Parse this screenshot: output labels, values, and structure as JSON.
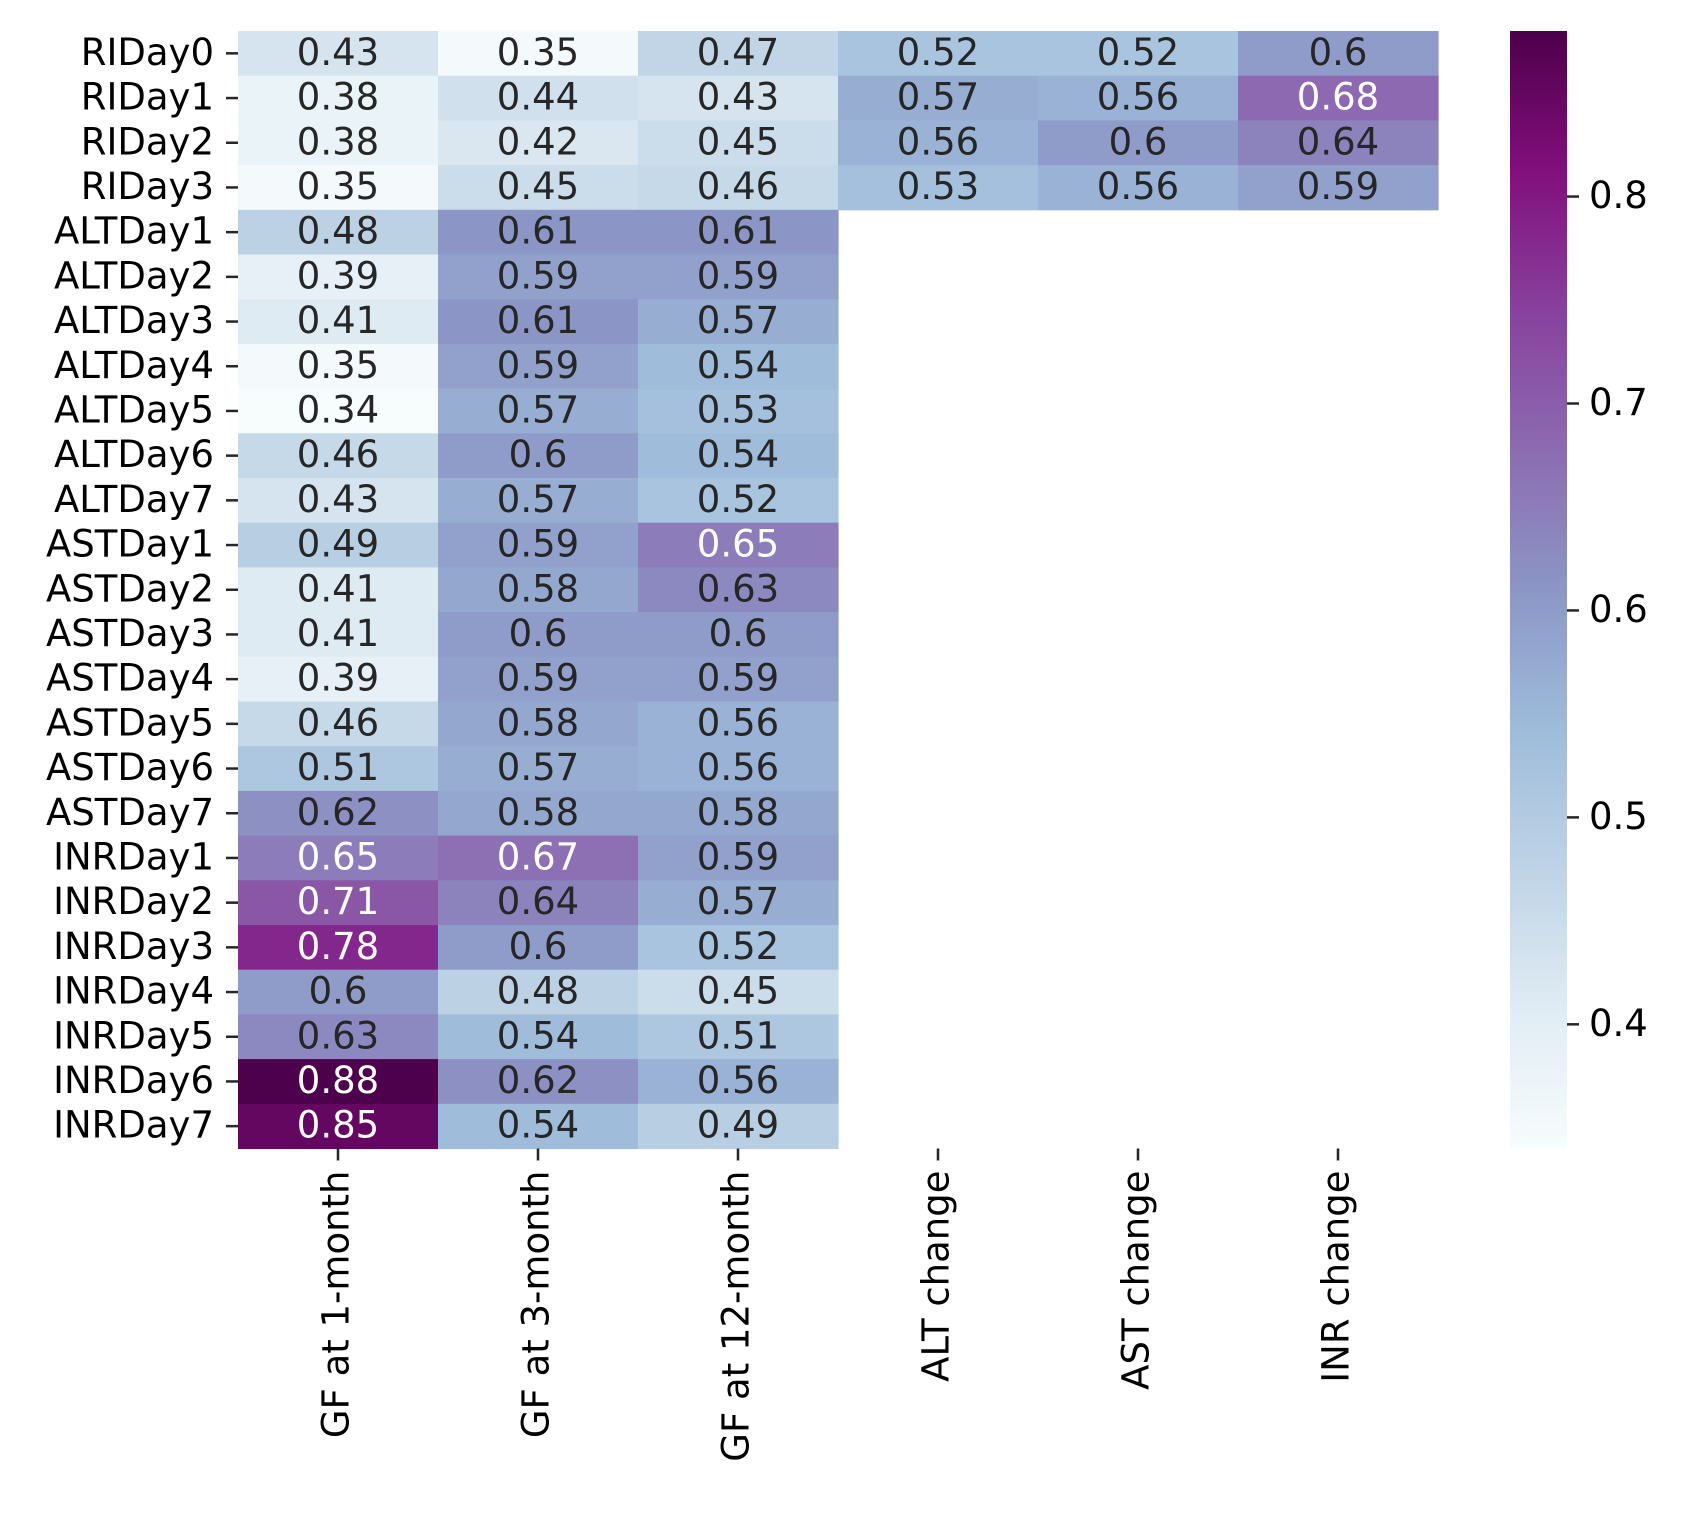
{
  "chart_data": {
    "type": "heatmap",
    "title": "",
    "xlabel": "",
    "ylabel": "",
    "x_categories": [
      "GF at 1-month",
      "GF at 3-month",
      "GF at 12-month",
      "ALT change",
      "AST change",
      "INR change"
    ],
    "y_categories": [
      "RIDay0",
      "RIDay1",
      "RIDay2",
      "RIDay3",
      "ALTDay1",
      "ALTDay2",
      "ALTDay3",
      "ALTDay4",
      "ALTDay5",
      "ALTDay6",
      "ALTDay7",
      "ASTDay1",
      "ASTDay2",
      "ASTDay3",
      "ASTDay4",
      "ASTDay5",
      "ASTDay6",
      "ASTDay7",
      "INRDay1",
      "INRDay2",
      "INRDay3",
      "INRDay4",
      "INRDay5",
      "INRDay6",
      "INRDay7"
    ],
    "values": [
      [
        0.43,
        0.35,
        0.47,
        0.52,
        0.52,
        0.6
      ],
      [
        0.38,
        0.44,
        0.43,
        0.57,
        0.56,
        0.68
      ],
      [
        0.38,
        0.42,
        0.45,
        0.56,
        0.6,
        0.64
      ],
      [
        0.35,
        0.45,
        0.46,
        0.53,
        0.56,
        0.59
      ],
      [
        0.48,
        0.61,
        0.61,
        null,
        null,
        null
      ],
      [
        0.39,
        0.59,
        0.59,
        null,
        null,
        null
      ],
      [
        0.41,
        0.61,
        0.57,
        null,
        null,
        null
      ],
      [
        0.35,
        0.59,
        0.54,
        null,
        null,
        null
      ],
      [
        0.34,
        0.57,
        0.53,
        null,
        null,
        null
      ],
      [
        0.46,
        0.6,
        0.54,
        null,
        null,
        null
      ],
      [
        0.43,
        0.57,
        0.52,
        null,
        null,
        null
      ],
      [
        0.49,
        0.59,
        0.65,
        null,
        null,
        null
      ],
      [
        0.41,
        0.58,
        0.63,
        null,
        null,
        null
      ],
      [
        0.41,
        0.6,
        0.6,
        null,
        null,
        null
      ],
      [
        0.39,
        0.59,
        0.59,
        null,
        null,
        null
      ],
      [
        0.46,
        0.58,
        0.56,
        null,
        null,
        null
      ],
      [
        0.51,
        0.57,
        0.56,
        null,
        null,
        null
      ],
      [
        0.62,
        0.58,
        0.58,
        null,
        null,
        null
      ],
      [
        0.65,
        0.67,
        0.59,
        null,
        null,
        null
      ],
      [
        0.71,
        0.64,
        0.57,
        null,
        null,
        null
      ],
      [
        0.78,
        0.6,
        0.52,
        null,
        null,
        null
      ],
      [
        0.6,
        0.48,
        0.45,
        null,
        null,
        null
      ],
      [
        0.63,
        0.54,
        0.51,
        null,
        null,
        null
      ],
      [
        0.88,
        0.62,
        0.56,
        null,
        null,
        null
      ],
      [
        0.85,
        0.54,
        0.49,
        null,
        null,
        null
      ]
    ],
    "colorbar": {
      "range": [
        0.34,
        0.88
      ],
      "ticks": [
        0.4,
        0.5,
        0.6,
        0.7,
        0.8
      ],
      "colormap": "BuPu",
      "colormap_stops": [
        "#f7fcfd",
        "#e0ecf4",
        "#bfd3e6",
        "#9ebcda",
        "#8c96c6",
        "#8c6bb1",
        "#88419d",
        "#810f7c",
        "#4d004b"
      ]
    },
    "annotation_colors": {
      "dark": "#262626",
      "light": "#ffffff"
    }
  }
}
